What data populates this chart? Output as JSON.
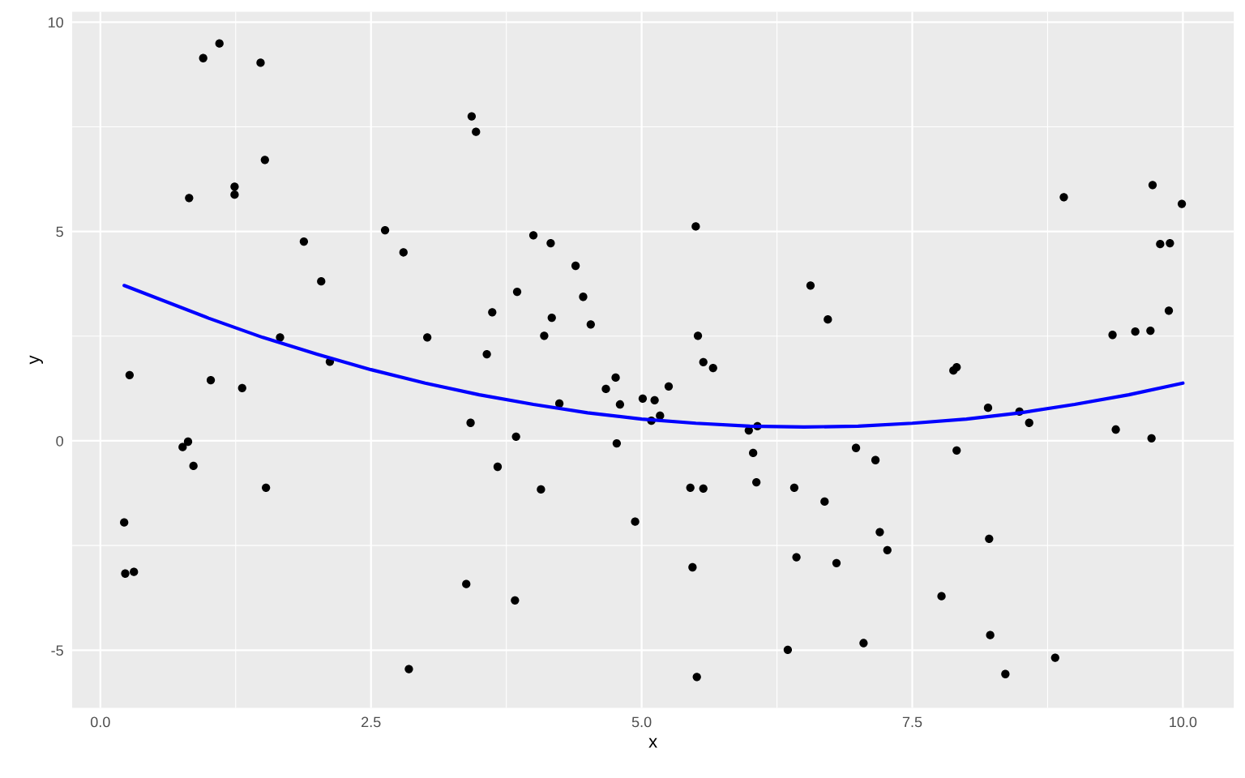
{
  "chart_data": {
    "type": "scatter",
    "xlabel": "x",
    "ylabel": "y",
    "xlim": [
      -0.26,
      10.47
    ],
    "ylim": [
      -6.38,
      10.25
    ],
    "xticks": [
      {
        "value": 0,
        "label": "0.0"
      },
      {
        "value": 2.5,
        "label": "2.5"
      },
      {
        "value": 5,
        "label": "5.0"
      },
      {
        "value": 7.5,
        "label": "7.5"
      },
      {
        "value": 10,
        "label": "10.0"
      }
    ],
    "yticks": [
      -5,
      0,
      5,
      10
    ],
    "grid": true,
    "marker": "circle",
    "series": [
      {
        "color": "#000000",
        "x": [
          0.22,
          0.23,
          0.31,
          0.27,
          0.76,
          0.81,
          0.86,
          0.82,
          0.95,
          1.1,
          1.02,
          1.24,
          1.24,
          1.31,
          1.48,
          1.52,
          1.53,
          1.66,
          1.88,
          2.04,
          2.12,
          2.63,
          2.8,
          2.85,
          3.02,
          3.38,
          3.42,
          3.43,
          3.47,
          3.57,
          3.62,
          3.67,
          3.83,
          3.84,
          3.85,
          4.0,
          4.07,
          4.1,
          4.16,
          4.17,
          4.24,
          4.39,
          4.46,
          4.53,
          4.67,
          4.76,
          4.77,
          4.8,
          4.94,
          5.01,
          5.09,
          5.12,
          5.17,
          5.25,
          5.45,
          5.47,
          5.5,
          5.51,
          5.52,
          5.57,
          5.57,
          5.66,
          5.99,
          6.03,
          6.07,
          6.06,
          6.35,
          6.41,
          6.43,
          6.56,
          6.69,
          6.72,
          6.8,
          6.98,
          7.05,
          7.16,
          7.2,
          7.27,
          7.77,
          7.88,
          7.91,
          7.91,
          8.2,
          8.21,
          8.22,
          8.36,
          8.49,
          8.58,
          8.82,
          8.9,
          9.35,
          9.38,
          9.56,
          9.7,
          9.71,
          9.72,
          9.79,
          9.88,
          9.87,
          9.99
        ],
        "values": [
          -1.95,
          -3.17,
          -3.13,
          1.57,
          -0.15,
          -0.02,
          -0.6,
          5.8,
          9.14,
          9.49,
          1.45,
          6.07,
          5.88,
          1.26,
          9.03,
          6.71,
          -1.12,
          2.47,
          4.76,
          3.81,
          1.89,
          5.03,
          4.5,
          -5.45,
          2.47,
          -3.42,
          0.43,
          7.75,
          7.38,
          2.07,
          3.07,
          -0.62,
          -3.81,
          0.1,
          3.56,
          4.91,
          -1.16,
          2.51,
          4.72,
          2.94,
          0.89,
          4.18,
          3.44,
          2.78,
          1.24,
          1.51,
          -0.06,
          0.87,
          -1.93,
          1.01,
          0.48,
          0.97,
          0.6,
          1.3,
          -1.12,
          -3.02,
          5.12,
          -5.64,
          2.51,
          1.88,
          -1.14,
          1.74,
          0.25,
          -0.29,
          0.35,
          -0.99,
          -4.99,
          -1.12,
          -2.78,
          3.71,
          -1.45,
          2.9,
          -2.92,
          -0.17,
          -4.83,
          -0.46,
          -2.18,
          -2.61,
          -3.71,
          1.68,
          1.76,
          -0.23,
          0.79,
          -2.34,
          -4.64,
          -5.57,
          0.7,
          0.43,
          -5.18,
          5.82,
          2.53,
          0.27,
          2.61,
          2.63,
          0.06,
          6.11,
          4.7,
          4.72,
          3.11,
          5.66
        ]
      },
      {
        "type": "line",
        "color": "#0000ff",
        "marker": "none",
        "line_style": "solid",
        "x": [
          0.22,
          1,
          1.5,
          2,
          2.5,
          3,
          3.5,
          4,
          4.5,
          5,
          5.5,
          6,
          6.5,
          7,
          7.5,
          8,
          8.5,
          9,
          9.5,
          10
        ],
        "values": [
          3.71,
          2.93,
          2.47,
          2.07,
          1.7,
          1.38,
          1.1,
          0.87,
          0.67,
          0.52,
          0.42,
          0.35,
          0.33,
          0.35,
          0.42,
          0.52,
          0.67,
          0.87,
          1.1,
          1.38
        ]
      }
    ]
  }
}
